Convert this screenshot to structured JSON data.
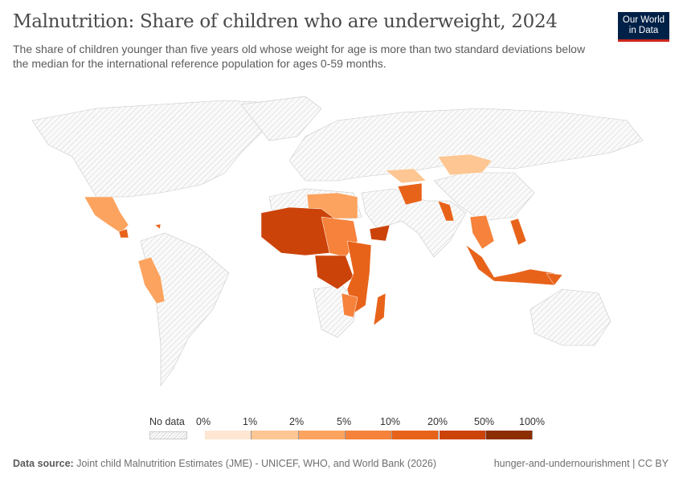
{
  "header": {
    "title": "Malnutrition: Share of children who are underweight, 2024",
    "subtitle": "The share of children younger than five years old whose weight for age is more than two standard deviations below the median for the international reference population for ages 0-59 months.",
    "logo_text": "Our World in Data"
  },
  "legend": {
    "no_data_label": "No data",
    "ticks": [
      "0%",
      "1%",
      "2%",
      "5%",
      "10%",
      "20%",
      "50%",
      "100%"
    ],
    "colors": [
      "#fee6d3",
      "#fdc692",
      "#fba35f",
      "#f6823b",
      "#e8631a",
      "#cc4309",
      "#8c2d04"
    ]
  },
  "footer": {
    "source_label": "Data source:",
    "source_text": "Joint child Malnutrition Estimates (JME) - UNICEF, WHO, and World Bank (2026)",
    "right_text": "hunger-and-undernourishment | CC BY"
  }
}
